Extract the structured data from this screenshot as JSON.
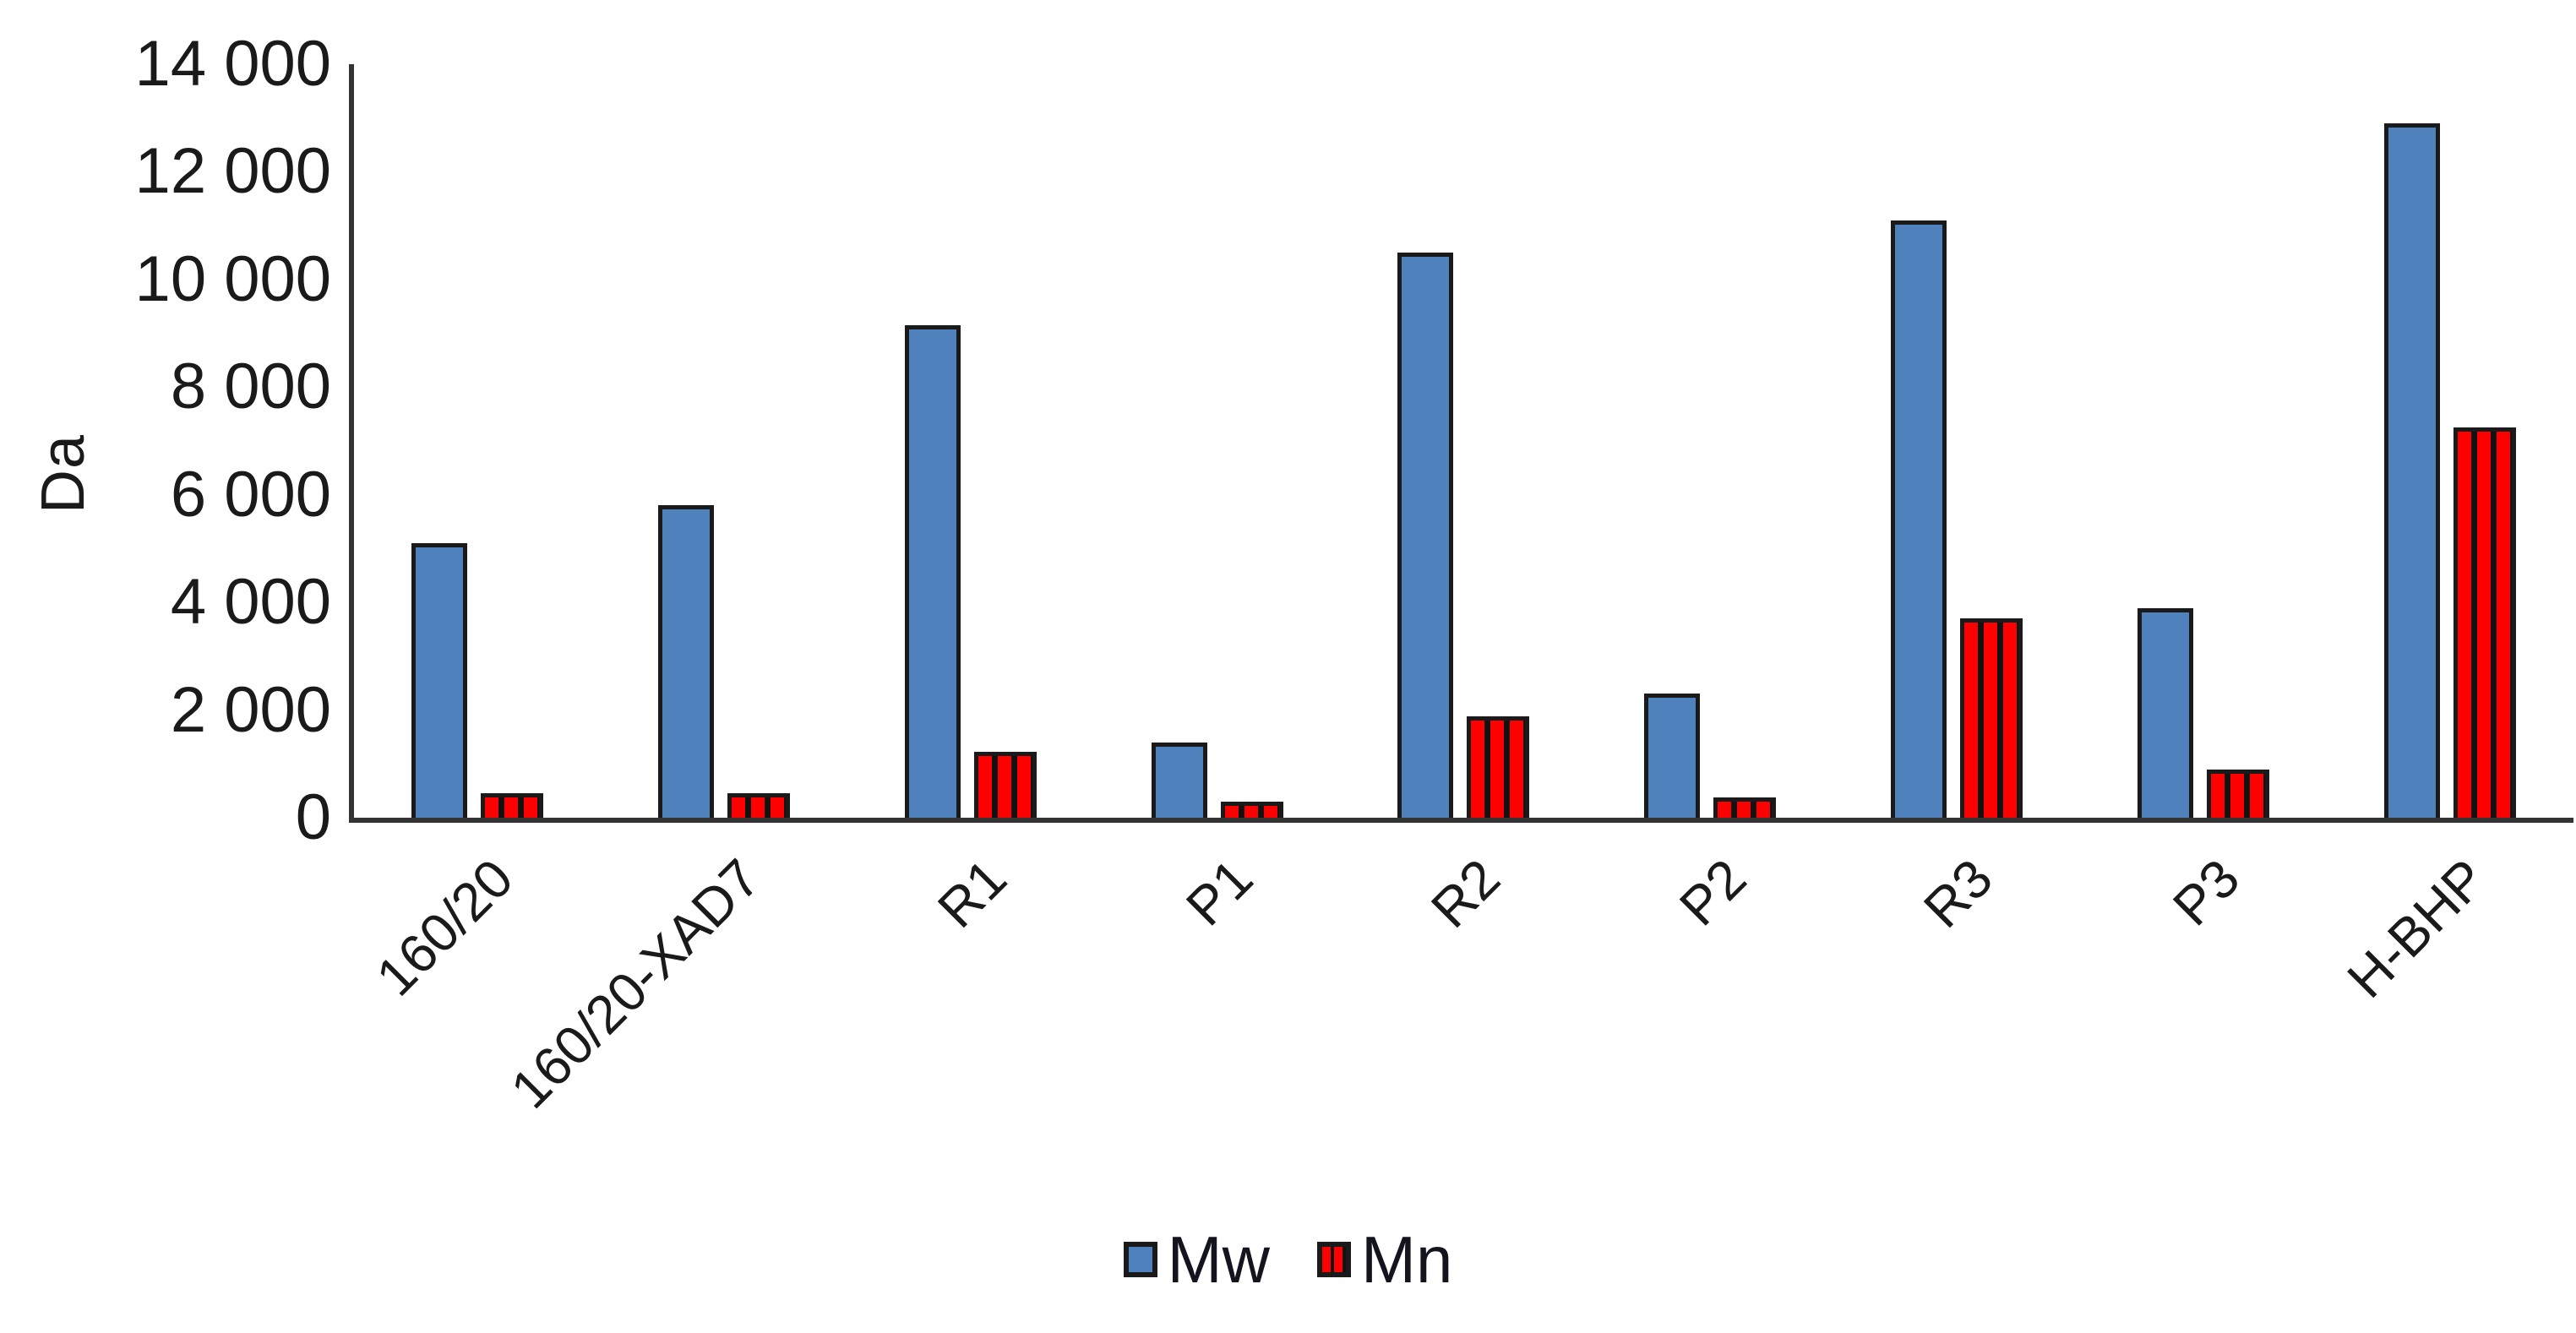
{
  "chart_data": {
    "type": "bar",
    "title": "",
    "xlabel": "",
    "ylabel": "Da",
    "ylim": [
      0,
      14000
    ],
    "grid": false,
    "legend_position": "bottom-center",
    "categories": [
      "160/20",
      "160/20-XAD7",
      "R1",
      "P1",
      "R2",
      "P2",
      "R3",
      "P3",
      "H-BHP"
    ],
    "series": [
      {
        "name": "Mw",
        "values": [
          5100,
          5800,
          9150,
          1400,
          10500,
          2300,
          11100,
          3900,
          12900
        ]
      },
      {
        "name": "Mn",
        "values": [
          460,
          450,
          1230,
          300,
          1890,
          380,
          3700,
          900,
          7250
        ]
      }
    ],
    "ytick_values": [
      0,
      2000,
      4000,
      6000,
      8000,
      10000,
      12000,
      14000
    ],
    "ytick_labels": [
      "0",
      "2 000",
      "4 000",
      "6 000",
      "8 000",
      "10 000",
      "12 000",
      "14 000"
    ],
    "colors": {
      "mw_fill": "#4f81bd",
      "mn_fill": "#fe0000",
      "mn_stripe": "#111111",
      "bar_border": "#1a1a1a",
      "axis_line": "#333333",
      "text": "#1a1a1a"
    }
  }
}
